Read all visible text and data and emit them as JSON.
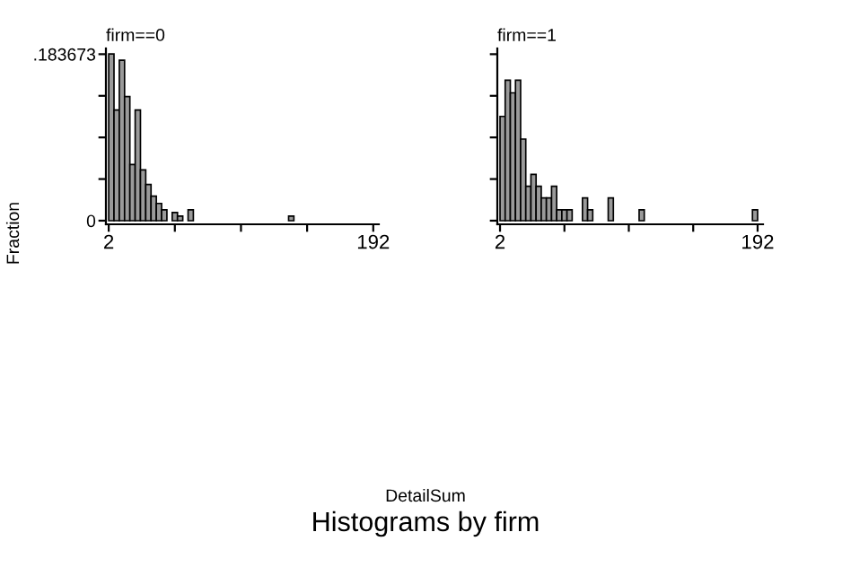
{
  "chart_data": [
    {
      "type": "histogram",
      "title": "firm==0",
      "ylabel": "Fraction",
      "color": "#9a9a9a",
      "bins": [
        2,
        5.8,
        9.6,
        13.4,
        17.2,
        21,
        24.8,
        28.6,
        32.4,
        36.2,
        40,
        43.8,
        47.6,
        51.4,
        55.2,
        59,
        62.8,
        66.6,
        70.4,
        74.2,
        78,
        81.8,
        85.6,
        89.4,
        93.2,
        97,
        100.8,
        104.6,
        108.4,
        112.2,
        116,
        119.8,
        123.6,
        127.4,
        131.2,
        135,
        138.8,
        142.6,
        146.4,
        150.2,
        154,
        157.8,
        161.6,
        165.4,
        169.2,
        173,
        176.8,
        180.6,
        184.4,
        188.2,
        192
      ],
      "values": [
        0.184,
        0.122,
        0.177,
        0.137,
        0.062,
        0.122,
        0.056,
        0.04,
        0.027,
        0.019,
        0.012,
        0,
        0.009,
        0.005,
        0,
        0.012,
        0,
        0,
        0,
        0,
        0,
        0,
        0,
        0,
        0,
        0,
        0,
        0,
        0,
        0,
        0,
        0,
        0,
        0,
        0.005,
        0,
        0,
        0,
        0,
        0,
        0,
        0,
        0,
        0,
        0,
        0,
        0,
        0,
        0,
        0
      ],
      "xlim": [
        0,
        196
      ],
      "ylim": [
        -0.004,
        0.19
      ],
      "xticks": [
        2,
        {
          "value": 49.5,
          "label": null
        },
        {
          "value": 97,
          "label": null
        },
        {
          "value": 144.5,
          "label": null
        },
        192
      ],
      "yticks": [
        0,
        {
          "value": 0.045918,
          "label": null
        },
        {
          "value": 0.091837,
          "label": null
        },
        {
          "value": 0.137755,
          "label": null
        },
        {
          "value": 0.183673,
          "label": ".183673"
        }
      ]
    },
    {
      "type": "histogram",
      "title": "firm==1",
      "xlabel": "DetailSum",
      "annotations": [
        "Histograms by firm"
      ],
      "color": "#9a9a9a",
      "tick_labels": "x",
      "bins": [
        2,
        5.8,
        9.6,
        13.4,
        17.2,
        21,
        24.8,
        28.6,
        32.4,
        36.2,
        40,
        43.8,
        47.6,
        51.4,
        55.2,
        59,
        62.8,
        66.6,
        70.4,
        74.2,
        78,
        81.8,
        85.6,
        89.4,
        93.2,
        97,
        100.8,
        104.6,
        108.4,
        112.2,
        116,
        119.8,
        123.6,
        127.4,
        131.2,
        135,
        138.8,
        142.6,
        146.4,
        150.2,
        154,
        157.8,
        161.6,
        165.4,
        169.2,
        173,
        176.8,
        180.6,
        184.4,
        188.2,
        192
      ],
      "values": [
        0.115,
        0.155,
        0.141,
        0.155,
        0.09,
        0.038,
        0.051,
        0.038,
        0.025,
        0.025,
        0.038,
        0.012,
        0.012,
        0.012,
        0,
        0,
        0.025,
        0.012,
        0,
        0,
        0,
        0.025,
        0,
        0,
        0,
        0,
        0,
        0.012,
        0,
        0,
        0,
        0,
        0,
        0,
        0,
        0,
        0,
        0,
        0,
        0,
        0,
        0,
        0,
        0,
        0,
        0,
        0,
        0,
        0,
        0.012
      ],
      "xlim": [
        0,
        196
      ],
      "ylim": [
        -0.004,
        0.19
      ],
      "xticks": [
        2,
        {
          "value": 49.5,
          "label": null
        },
        {
          "value": 97,
          "label": null
        },
        {
          "value": 144.5,
          "label": null
        },
        192
      ],
      "yticks": [
        0,
        {
          "value": 0.045918,
          "label": null
        },
        {
          "value": 0.091837,
          "label": null
        },
        {
          "value": 0.137755,
          "label": null
        },
        {
          "value": 0.183673,
          "label": null
        }
      ]
    }
  ]
}
